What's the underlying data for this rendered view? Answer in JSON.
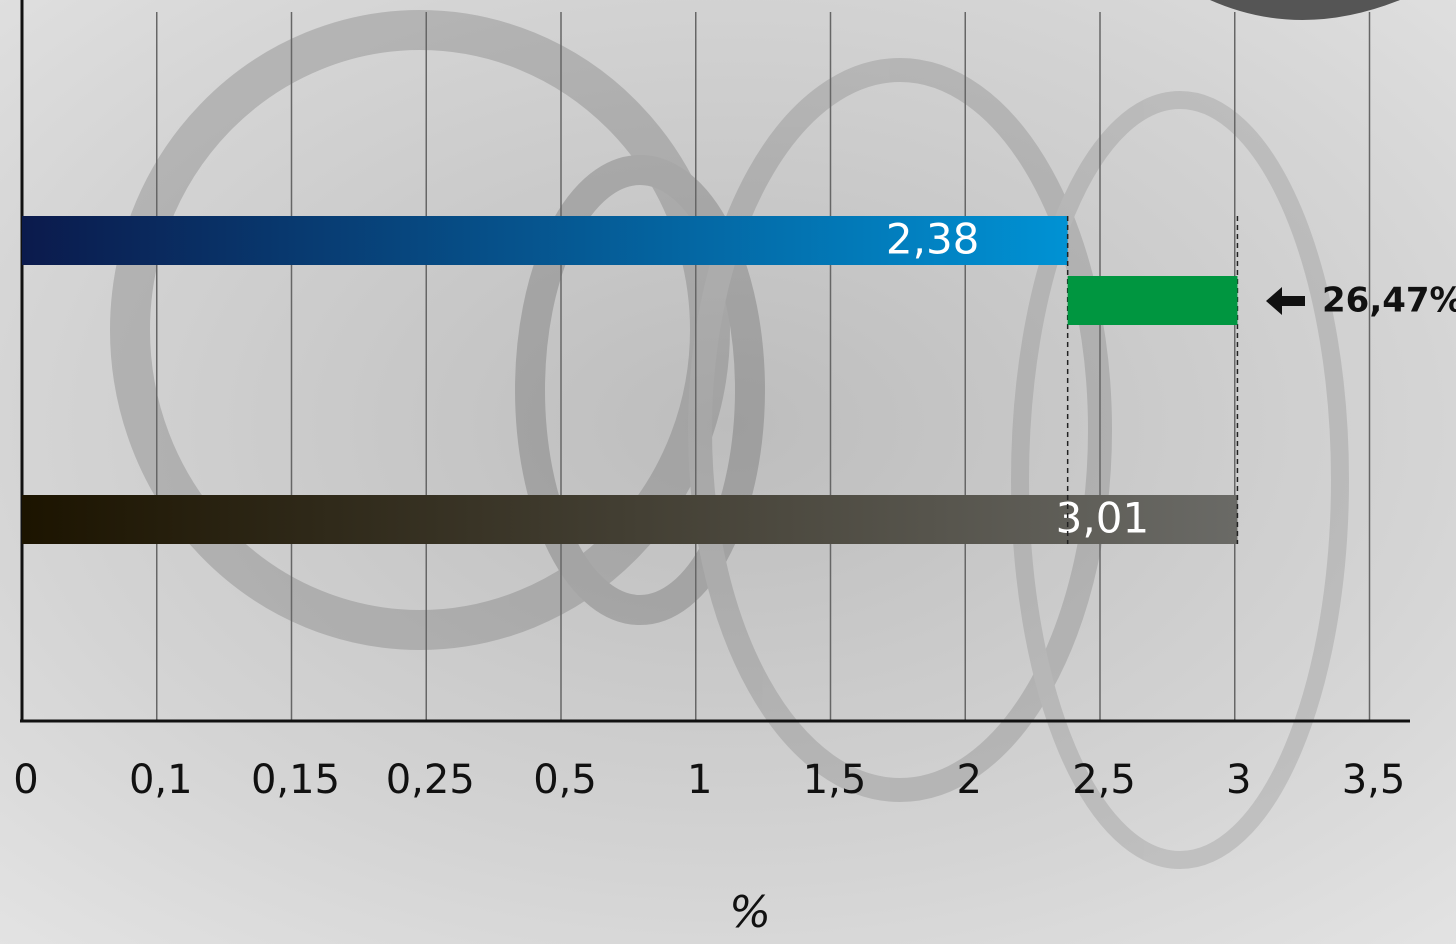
{
  "chart_data": {
    "type": "bar",
    "x_label": "%",
    "xlim": [
      0,
      3.5
    ],
    "xticks": [
      0,
      {
        "value": 0.1,
        "label": "0,1"
      },
      {
        "value": 0.15,
        "label": "0,15"
      },
      {
        "value": 0.25,
        "label": "0,25"
      },
      {
        "value": 0.5,
        "label": "0,5"
      },
      1,
      {
        "value": 1.5,
        "label": "1,5"
      },
      2,
      {
        "value": 2.5,
        "label": "2,5"
      },
      3,
      {
        "value": 3.5,
        "label": "3,5"
      }
    ],
    "grid": true,
    "bars": [
      {
        "value": 2.38,
        "label": "2,38",
        "colors": [
          "#0b1a4c",
          "#0092d4"
        ]
      },
      {
        "value": 3.01,
        "label": "3,01",
        "colors": [
          "#1c1400",
          "#6a6a66"
        ]
      }
    ],
    "change": {
      "value": 26.47,
      "label": "26,47%",
      "color": "#009640"
    }
  }
}
